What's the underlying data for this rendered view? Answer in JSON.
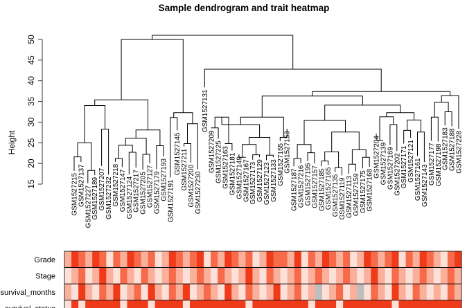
{
  "colors": {
    "ink": "#000000",
    "axis": "#333333",
    "missing": "#bebebe",
    "strong": "#ff2a00",
    "background": "#ffffff"
  },
  "chart_data": {
    "type": "heatmap",
    "title": "Sample dendrogram and trait heatmap",
    "ylabel": "Height",
    "ylim": [
      15,
      51
    ],
    "yticks": [
      "15",
      "20",
      "25",
      "30",
      "35",
      "40",
      "45",
      "50"
    ],
    "samples": [
      "GSM1527215",
      "GSM1527137",
      "GSM1527227",
      "GSM1527189",
      "GSM1527207",
      "GSM1527232",
      "GSM1527218",
      "GSM1527147",
      "GSM1527124",
      "GSM1527217",
      "GSM1527205",
      "GSM1527127",
      "GSM1527179",
      "GSM1527193",
      "GSM1527191",
      "GSM1527145",
      "GSM1527211",
      "GSM1527200",
      "GSM1527230",
      "GSM1527131",
      "GSM1527209",
      "GSM1527225",
      "GSM1527163",
      "GSM1527181",
      "GSM1527149",
      "GSM1527167",
      "GSM1527173",
      "GSM1527129",
      "GSM1527123",
      "GSM1527133",
      "GSM1527155",
      "GSM1527153",
      "GSM1527187",
      "GSM1527216",
      "GSM1527195",
      "GSM1527157",
      "GSM1527185",
      "GSM1527165",
      "GSM1527135",
      "GSM1527119",
      "GSM1527113",
      "GSM1527159",
      "GSM1527175",
      "GSM1527168",
      "GSM1527204",
      "GSM1527139",
      "GSM1527169",
      "GSM1527202",
      "GSM1527171",
      "GSM1527121",
      "GSM1527161",
      "GSM1527143",
      "GSM1527177",
      "GSM1527198",
      "GSM1527183",
      "GSM1527188",
      "GSM1527228"
    ],
    "dendrogram": {
      "leaf_heights": [
        18.2,
        20.3,
        15.2,
        17.2,
        19.4,
        17.3,
        20.4,
        19.1,
        17.4,
        19.0,
        18.5,
        20.1,
        18.6,
        21.7,
        16.6,
        28.0,
        24.1,
        20.2,
        18.6,
        38.4,
        28.5,
        26.0,
        24.7,
        23.1,
        22.2,
        21.5,
        20.9,
        21.5,
        20.8,
        21.5,
        25.4,
        28.4,
        19.3,
        20.1,
        20.6,
        20.0,
        19.3,
        19.6,
        17.9,
        17.1,
        17.5,
        18.1,
        18.8,
        19.2,
        27.2,
        25.6,
        24.5,
        23.0,
        24.8,
        26.2,
        21.8,
        20.3,
        25.5,
        25.3,
        29.2,
        29.0,
        28.4
      ],
      "merges": [
        [
          -1,
          -2,
          21.6
        ],
        [
          -3,
          -4,
          18.3
        ],
        [
          1,
          2,
          25.0
        ],
        [
          -5,
          -6,
          28.3
        ],
        [
          3,
          4,
          34.0
        ],
        [
          -7,
          -8,
          21.2
        ],
        [
          -9,
          -10,
          22.7
        ],
        [
          6,
          7,
          24.4
        ],
        [
          -11,
          -12,
          22.2
        ],
        [
          8,
          9,
          26.1
        ],
        [
          -13,
          -14,
          24.3
        ],
        [
          10,
          11,
          28.1
        ],
        [
          5,
          12,
          35.4
        ],
        [
          -15,
          -16,
          31.1
        ],
        [
          -17,
          -18,
          24.8
        ],
        [
          -19,
          15,
          29.6
        ],
        [
          14,
          16,
          32.3
        ],
        [
          13,
          17,
          50.0
        ],
        [
          -21,
          -22,
          28.6
        ],
        [
          -23,
          -24,
          24.8
        ],
        [
          19,
          20,
          31.2
        ],
        [
          -25,
          -26,
          21.5
        ],
        [
          -27,
          -28,
          22.1
        ],
        [
          22,
          23,
          24.6
        ],
        [
          -29,
          -30,
          22.0
        ],
        [
          24,
          25,
          26.3
        ],
        [
          21,
          26,
          29.4
        ],
        [
          -31,
          -32,
          26.3
        ],
        [
          27,
          28,
          31.2
        ],
        [
          -33,
          -34,
          21.2
        ],
        [
          -35,
          -36,
          22.6
        ],
        [
          30,
          31,
          24.6
        ],
        [
          -37,
          -38,
          20.6
        ],
        [
          -39,
          -40,
          19.0
        ],
        [
          33,
          34,
          22.8
        ],
        [
          -41,
          -42,
          19.8
        ],
        [
          -43,
          -44,
          21.5
        ],
        [
          36,
          37,
          23.3
        ],
        [
          35,
          38,
          27.6
        ],
        [
          32,
          39,
          30.4
        ],
        [
          -45,
          -46,
          25.6
        ],
        [
          -47,
          -48,
          29.4
        ],
        [
          41,
          42,
          31.3
        ],
        [
          -49,
          -50,
          28.0
        ],
        [
          -51,
          -52,
          27.6
        ],
        [
          44,
          45,
          30.5
        ],
        [
          43,
          46,
          32.3
        ],
        [
          40,
          47,
          34.1
        ],
        [
          29,
          48,
          36.3
        ],
        [
          -53,
          -54,
          31.2
        ],
        [
          -55,
          -56,
          32.5
        ],
        [
          50,
          51,
          34.8
        ],
        [
          -57,
          52,
          36.4
        ],
        [
          49,
          53,
          37.4
        ],
        [
          -20,
          54,
          42.8
        ],
        [
          18,
          55,
          51.0
        ]
      ]
    },
    "traits": [
      "Grade",
      "Stage",
      "survival_months",
      "survival_status"
    ],
    "trait_values": {
      "Grade": [
        2,
        4,
        3,
        2,
        4,
        3,
        1,
        3,
        2,
        4,
        3,
        2,
        3,
        1,
        2,
        4,
        3,
        2,
        3,
        4,
        1,
        3,
        2,
        4,
        3,
        2,
        3,
        1,
        2,
        4,
        3,
        3,
        2,
        4,
        1,
        3,
        2,
        4,
        3,
        2,
        3,
        1,
        2,
        4,
        3,
        2,
        3,
        4,
        1,
        3,
        2,
        4,
        3,
        2,
        1,
        3,
        4
      ],
      "Stage": [
        1,
        2,
        3,
        1,
        2,
        4,
        2,
        1,
        3,
        2,
        1,
        3,
        2,
        1,
        2,
        3,
        2,
        1,
        2,
        3,
        2,
        1,
        3,
        2,
        1,
        2,
        4,
        2,
        1,
        3,
        2,
        1,
        2,
        3,
        1,
        2,
        3,
        2,
        1,
        2,
        3,
        2,
        1,
        2,
        4,
        2,
        1,
        3,
        2,
        1,
        2,
        3,
        2,
        1,
        2,
        3,
        2
      ],
      "survival_months": [
        2,
        1,
        4,
        2,
        1,
        3,
        2,
        4,
        1,
        2,
        3,
        1,
        4,
        2,
        1,
        3,
        2,
        4,
        1,
        2,
        3,
        2,
        1,
        4,
        2,
        1,
        3,
        2,
        1,
        2,
        4,
        1,
        2,
        3,
        1,
        2,
        null,
        1,
        2,
        3,
        1,
        2,
        null,
        1,
        3,
        2,
        1,
        4,
        2,
        1,
        3,
        2,
        1,
        2,
        1,
        3,
        2
      ],
      "survival_status": [
        1,
        4,
        1,
        4,
        4,
        4,
        4,
        4,
        1,
        4,
        4,
        4,
        1,
        4,
        4,
        4,
        4,
        1,
        4,
        4,
        4,
        4,
        4,
        4,
        4,
        4,
        1,
        4,
        4,
        4,
        4,
        4,
        4,
        4,
        4,
        1,
        4,
        4,
        4,
        1,
        4,
        4,
        4,
        4,
        4,
        4,
        4,
        1,
        4,
        4,
        4,
        4,
        4,
        4,
        4,
        4,
        4
      ]
    },
    "color_scale": [
      "#ffffff",
      "#fde0d8",
      "#fbb09c",
      "#f76a4a",
      "#f03b1a"
    ]
  }
}
